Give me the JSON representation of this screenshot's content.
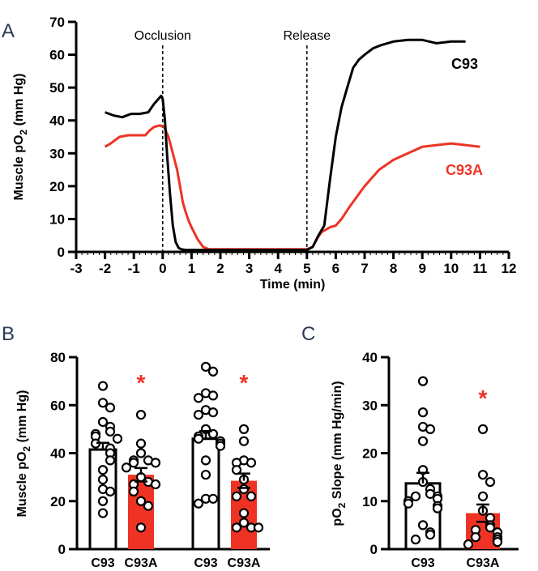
{
  "colors": {
    "c93": "#000000",
    "c93a": "#ee3324",
    "bar_c93_fill": "#ffffff",
    "letter": "#2b3a55"
  },
  "chart_data": [
    {
      "panel": "A",
      "type": "line",
      "title": "",
      "xlabel": "Time (min)",
      "ylabel": "Muscle pO2 (mm Hg)",
      "ylabel_main": "Muscle pO",
      "ylabel_sub": "2",
      "ylabel_tail": " (mm Hg)",
      "xlim": [
        -3,
        12
      ],
      "ylim": [
        0,
        70
      ],
      "xticks": [
        -3,
        -2,
        -1,
        0,
        1,
        2,
        3,
        4,
        5,
        6,
        7,
        8,
        9,
        10,
        11,
        12
      ],
      "yticks": [
        0,
        10,
        20,
        30,
        40,
        50,
        60,
        70
      ],
      "annotations": [
        {
          "text": "Occlusion",
          "x": 0
        },
        {
          "text": "Release",
          "x": 5
        }
      ],
      "series": [
        {
          "name": "C93",
          "color": "#000000",
          "x": [
            -2.0,
            -1.7,
            -1.4,
            -1.1,
            -0.8,
            -0.5,
            -0.3,
            -0.15,
            -0.05,
            0.0,
            0.08,
            0.15,
            0.25,
            0.35,
            0.45,
            0.55,
            0.65,
            0.8,
            1.0,
            2.0,
            3.0,
            4.0,
            5.0,
            5.2,
            5.4,
            5.6,
            5.8,
            6.0,
            6.2,
            6.4,
            6.6,
            6.8,
            7.0,
            7.3,
            7.6,
            8.0,
            8.5,
            9.0,
            9.5,
            10.0,
            10.5
          ],
          "y": [
            42.5,
            41.5,
            41.0,
            42.0,
            42.0,
            42.5,
            45.0,
            46.5,
            47.5,
            46.5,
            40.0,
            30.0,
            18.0,
            8.0,
            3.0,
            1.2,
            0.8,
            0.6,
            0.6,
            0.6,
            0.6,
            0.6,
            0.6,
            1.5,
            5.0,
            8.0,
            22.0,
            35.0,
            44.0,
            50.0,
            56.0,
            58.5,
            60.0,
            62.0,
            63.0,
            64.0,
            64.5,
            64.5,
            63.5,
            64.0,
            64.0
          ]
        },
        {
          "name": "C93A",
          "color": "#ee3324",
          "x": [
            -2.0,
            -1.8,
            -1.5,
            -1.2,
            -0.9,
            -0.6,
            -0.45,
            -0.3,
            -0.1,
            0.05,
            0.2,
            0.35,
            0.5,
            0.6,
            0.7,
            0.8,
            0.9,
            1.0,
            1.2,
            1.4,
            1.6,
            2.0,
            3.0,
            4.0,
            5.0,
            5.2,
            5.35,
            5.5,
            5.8,
            6.0,
            6.2,
            6.5,
            7.0,
            7.5,
            8.0,
            8.5,
            9.0,
            9.5,
            10.0,
            10.5,
            11.0
          ],
          "y": [
            32.0,
            33.0,
            35.0,
            35.5,
            35.5,
            35.5,
            37.0,
            38.0,
            38.5,
            38.0,
            35.0,
            30.0,
            25.0,
            20.0,
            15.0,
            12.0,
            9.5,
            7.5,
            4.0,
            1.5,
            0.8,
            0.8,
            0.8,
            0.8,
            0.8,
            1.5,
            4.0,
            6.0,
            7.5,
            8.0,
            10.0,
            14.0,
            20.0,
            25.0,
            28.0,
            30.0,
            32.0,
            32.5,
            33.0,
            32.5,
            32.0
          ]
        }
      ],
      "series_labels": [
        {
          "text": "C93",
          "color": "#000000"
        },
        {
          "text": "C93A",
          "color": "#ee3324"
        }
      ]
    },
    {
      "panel": "B",
      "type": "bar",
      "title": "",
      "xlabel": "",
      "ylabel": "Muscle pO2 (mm Hg)",
      "ylabel_main": "Muscle pO",
      "ylabel_sub": "2",
      "ylabel_tail": " (mm Hg)",
      "ylim": [
        0,
        80
      ],
      "yticks": [
        0,
        20,
        40,
        60,
        80
      ],
      "categories": [
        "C93",
        "C93A",
        "C93",
        "C93A"
      ],
      "values": [
        41.5,
        31.0,
        46.0,
        28.5
      ],
      "sem": [
        2.8,
        2.8,
        3.2,
        3.0
      ],
      "fills": [
        "#ffffff",
        "#ee3324",
        "#ffffff",
        "#ee3324"
      ],
      "significance": [
        "",
        "*",
        "",
        "*"
      ],
      "points": [
        [
          68,
          61,
          59,
          53,
          51,
          49,
          48,
          47,
          46,
          44,
          42,
          40,
          37,
          33,
          29,
          25,
          24,
          20,
          15
        ],
        [
          56,
          44,
          40,
          37,
          37,
          36,
          36,
          34,
          30,
          28,
          27,
          27,
          24,
          20,
          18,
          9
        ],
        [
          76,
          74,
          65,
          64,
          63,
          58,
          57,
          56,
          50,
          48,
          47,
          46,
          45,
          44,
          43,
          37,
          31,
          21,
          21,
          19
        ],
        [
          50,
          45,
          37,
          36,
          36,
          33,
          29,
          25,
          22,
          22,
          15,
          11,
          9,
          9,
          9
        ]
      ]
    },
    {
      "panel": "C",
      "type": "bar",
      "title": "",
      "xlabel": "",
      "ylabel": "pO2 Slope (mm Hg/min)",
      "ylabel_main": "pO",
      "ylabel_sub": "2",
      "ylabel_tail": " Slope (mm Hg/min)",
      "ylim": [
        0,
        40
      ],
      "yticks": [
        0,
        10,
        20,
        30,
        40
      ],
      "categories": [
        "C93",
        "C93A"
      ],
      "values": [
        13.7,
        7.5
      ],
      "sem": [
        2.2,
        1.8
      ],
      "fills": [
        "#ffffff",
        "#ee3324"
      ],
      "significance": [
        "",
        "*"
      ],
      "points": [
        [
          35,
          28.5,
          25.5,
          25,
          22.5,
          16.5,
          14,
          12.5,
          11.5,
          11,
          11,
          10.5,
          10,
          9.5,
          9,
          8.5,
          5,
          3.5,
          3,
          2
        ],
        [
          25,
          15.5,
          14,
          11,
          8,
          6.5,
          5,
          4.5,
          4,
          3.5,
          2.5,
          2.5,
          2,
          1.5,
          1
        ]
      ]
    }
  ]
}
